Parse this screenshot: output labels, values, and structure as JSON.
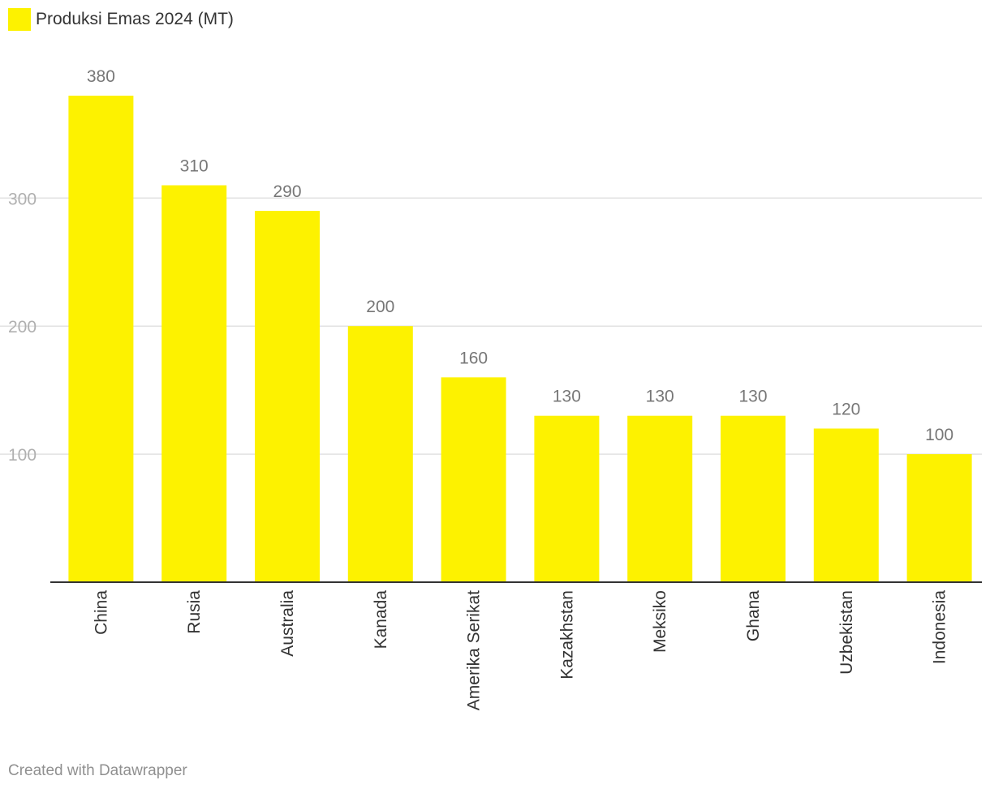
{
  "legend": {
    "label": "Produksi Emas 2024 (MT)",
    "color": "#fdf200"
  },
  "footer": {
    "credit": "Created with Datawrapper"
  },
  "chart_data": {
    "type": "bar",
    "categories": [
      "China",
      "Rusia",
      "Australia",
      "Kanada",
      "Amerika Serikat",
      "Kazakhstan",
      "Meksiko",
      "Ghana",
      "Uzbekistan",
      "Indonesia"
    ],
    "series": [
      {
        "name": "Produksi Emas 2024 (MT)",
        "values": [
          380,
          310,
          290,
          200,
          160,
          130,
          130,
          130,
          120,
          100
        ],
        "color": "#fdf200"
      }
    ],
    "yticks": [
      100,
      200,
      300
    ],
    "ylim": [
      0,
      380
    ],
    "grid": true,
    "legend_position": "top-left",
    "colors": {
      "bar": "#fdf200",
      "grid": "#e2e2e2",
      "axis": "#333333"
    }
  }
}
